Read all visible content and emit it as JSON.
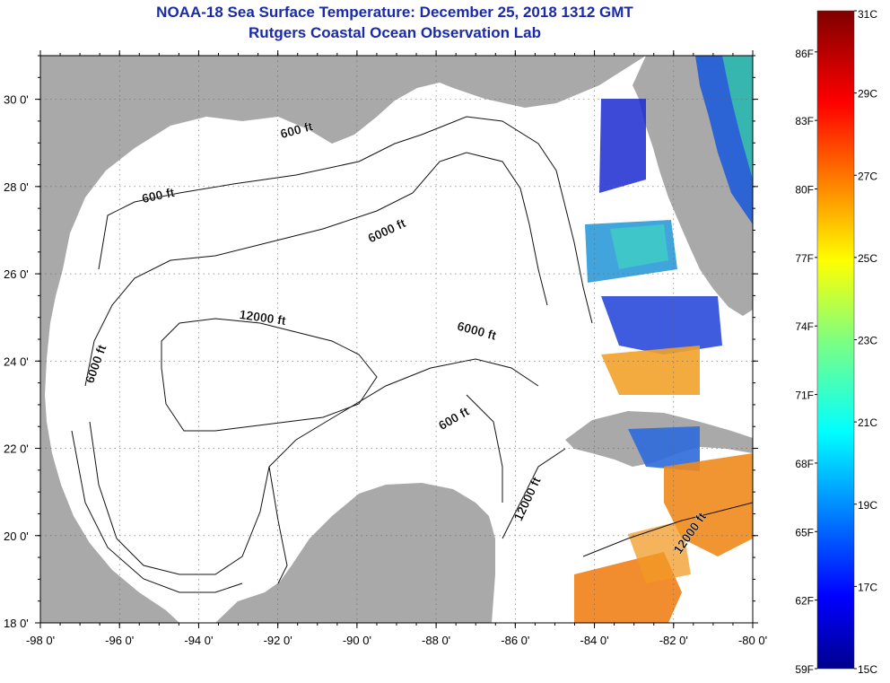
{
  "title": "NOAA-18 Sea Surface Temperature:  December 25, 2018 1312 GMT",
  "subtitle": "Rutgers Coastal Ocean Observation Lab",
  "map": {
    "lon_range": [
      -98,
      -80
    ],
    "lat_range": [
      18,
      31
    ],
    "lon_ticks": [
      -98,
      -96,
      -94,
      -92,
      -90,
      -88,
      -86,
      -84,
      -82,
      -80
    ],
    "lat_ticks": [
      18,
      20,
      22,
      24,
      26,
      28,
      30
    ],
    "lon_tick_labels": [
      "-98 0'",
      "-96 0'",
      "-94 0'",
      "-92 0'",
      "-90 0'",
      "-88 0'",
      "-86 0'",
      "-84 0'",
      "-82 0'",
      "-80 0'"
    ],
    "lat_tick_labels": [
      "18 0'",
      "20 0'",
      "22 0'",
      "24 0'",
      "26 0'",
      "28 0'",
      "30 0'"
    ],
    "grid": "dotted",
    "land_color": "#a9a9a9",
    "ocean_color": "#ffffff"
  },
  "contour_labels": [
    {
      "text": "600 ft",
      "lon": -91.5,
      "lat": 29.2
    },
    {
      "text": "600 ft",
      "lon": -95.0,
      "lat": 27.7
    },
    {
      "text": "6000 ft",
      "lon": -89.2,
      "lat": 26.9
    },
    {
      "text": "12000 ft",
      "lon": -92.4,
      "lat": 24.9
    },
    {
      "text": "6000 ft",
      "lon": -96.5,
      "lat": 23.9
    },
    {
      "text": "6000 ft",
      "lon": -87.0,
      "lat": 24.6
    },
    {
      "text": "600 ft",
      "lon": -87.5,
      "lat": 22.6
    },
    {
      "text": "12000 ft",
      "lon": -85.6,
      "lat": 20.8
    },
    {
      "text": "12000 ft",
      "lon": -81.5,
      "lat": 20.0
    }
  ],
  "colorbar": {
    "min_c": 15,
    "max_c": 31,
    "celsius_labels": [
      "31C",
      "29C",
      "27C",
      "25C",
      "23C",
      "21C",
      "19C",
      "17C",
      "15C"
    ],
    "fahrenheit_labels": [
      "86F",
      "83F",
      "80F",
      "77F",
      "74F",
      "71F",
      "68F",
      "65F",
      "62F",
      "59F"
    ]
  }
}
